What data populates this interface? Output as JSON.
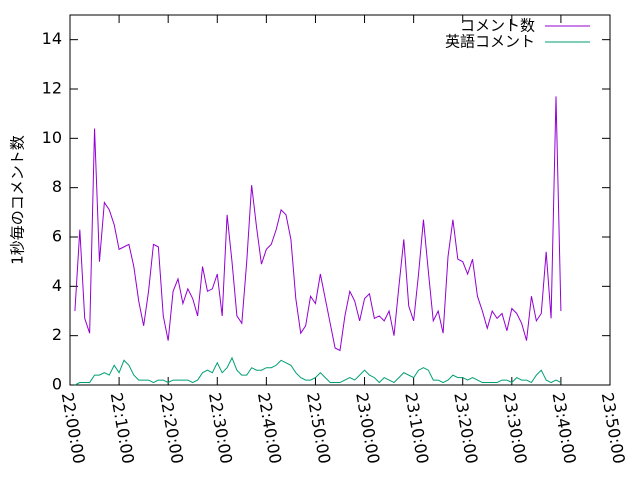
{
  "chart_data": {
    "type": "line",
    "ylabel": "1秒毎のコメント数",
    "x": [
      "22:01:00",
      "22:02:00",
      "22:03:00",
      "22:04:00",
      "22:05:00",
      "22:06:00",
      "22:07:00",
      "22:08:00",
      "22:09:00",
      "22:10:00",
      "22:11:00",
      "22:12:00",
      "22:13:00",
      "22:14:00",
      "22:15:00",
      "22:16:00",
      "22:17:00",
      "22:18:00",
      "22:19:00",
      "22:20:00",
      "22:21:00",
      "22:22:00",
      "22:23:00",
      "22:24:00",
      "22:25:00",
      "22:26:00",
      "22:27:00",
      "22:28:00",
      "22:29:00",
      "22:30:00",
      "22:31:00",
      "22:32:00",
      "22:33:00",
      "22:34:00",
      "22:35:00",
      "22:36:00",
      "22:37:00",
      "22:38:00",
      "22:39:00",
      "22:40:00",
      "22:41:00",
      "22:42:00",
      "22:43:00",
      "22:44:00",
      "22:45:00",
      "22:46:00",
      "22:47:00",
      "22:48:00",
      "22:49:00",
      "22:50:00",
      "22:51:00",
      "22:52:00",
      "22:53:00",
      "22:54:00",
      "22:55:00",
      "22:56:00",
      "22:57:00",
      "22:58:00",
      "22:59:00",
      "23:00:00",
      "23:01:00",
      "23:02:00",
      "23:03:00",
      "23:04:00",
      "23:05:00",
      "23:06:00",
      "23:07:00",
      "23:08:00",
      "23:09:00",
      "23:10:00",
      "23:11:00",
      "23:12:00",
      "23:13:00",
      "23:14:00",
      "23:15:00",
      "23:16:00",
      "23:17:00",
      "23:18:00",
      "23:19:00",
      "23:20:00",
      "23:21:00",
      "23:22:00",
      "23:23:00",
      "23:24:00",
      "23:25:00",
      "23:26:00",
      "23:27:00",
      "23:28:00",
      "23:29:00",
      "23:30:00",
      "23:31:00",
      "23:32:00",
      "23:33:00",
      "23:34:00",
      "23:35:00",
      "23:36:00",
      "23:37:00",
      "23:38:00",
      "23:39:00",
      "23:40:00"
    ],
    "series": [
      {
        "name": "コメント数",
        "color": "#9400d3",
        "values": [
          3.0,
          6.3,
          2.7,
          2.1,
          10.4,
          5.0,
          7.4,
          7.1,
          6.5,
          5.5,
          5.6,
          5.7,
          4.8,
          3.4,
          2.4,
          3.8,
          5.7,
          5.6,
          2.8,
          1.8,
          3.8,
          4.3,
          3.3,
          3.9,
          3.5,
          2.8,
          4.8,
          3.8,
          3.9,
          4.5,
          2.8,
          6.9,
          5.0,
          2.8,
          2.5,
          5.0,
          8.1,
          6.4,
          4.9,
          5.5,
          5.7,
          6.3,
          7.1,
          6.9,
          5.9,
          3.5,
          2.1,
          2.4,
          3.6,
          3.3,
          4.5,
          3.5,
          2.5,
          1.5,
          1.4,
          2.8,
          3.8,
          3.4,
          2.6,
          3.5,
          3.7,
          2.7,
          2.8,
          2.6,
          3.0,
          2.0,
          4.0,
          5.9,
          3.2,
          2.6,
          4.5,
          6.7,
          4.6,
          2.6,
          3.0,
          2.1,
          5.2,
          6.7,
          5.1,
          5.0,
          4.5,
          5.1,
          3.6,
          3.0,
          2.3,
          3.0,
          2.7,
          2.9,
          2.2,
          3.1,
          2.9,
          2.5,
          1.8,
          3.6,
          2.6,
          2.9,
          5.4,
          2.7,
          11.7,
          3.0
        ]
      },
      {
        "name": "英語コメント",
        "color": "#009e73",
        "values": [
          0.0,
          0.1,
          0.1,
          0.1,
          0.4,
          0.4,
          0.5,
          0.4,
          0.8,
          0.5,
          1.0,
          0.8,
          0.4,
          0.2,
          0.2,
          0.2,
          0.1,
          0.2,
          0.2,
          0.1,
          0.2,
          0.2,
          0.2,
          0.2,
          0.1,
          0.2,
          0.5,
          0.6,
          0.5,
          0.9,
          0.5,
          0.7,
          1.1,
          0.6,
          0.4,
          0.4,
          0.7,
          0.6,
          0.6,
          0.7,
          0.7,
          0.8,
          1.0,
          0.9,
          0.8,
          0.5,
          0.3,
          0.2,
          0.2,
          0.3,
          0.5,
          0.3,
          0.1,
          0.1,
          0.1,
          0.2,
          0.3,
          0.2,
          0.4,
          0.6,
          0.4,
          0.3,
          0.1,
          0.3,
          0.2,
          0.1,
          0.3,
          0.5,
          0.4,
          0.3,
          0.6,
          0.7,
          0.6,
          0.2,
          0.2,
          0.1,
          0.2,
          0.4,
          0.3,
          0.3,
          0.2,
          0.3,
          0.2,
          0.1,
          0.1,
          0.1,
          0.1,
          0.2,
          0.2,
          0.1,
          0.3,
          0.2,
          0.2,
          0.1,
          0.4,
          0.6,
          0.2,
          0.1,
          0.2,
          0.1
        ]
      }
    ],
    "xlim": [
      "22:00:00",
      "23:50:00"
    ],
    "xticks": [
      "22:00:00",
      "22:10:00",
      "22:20:00",
      "22:30:00",
      "22:40:00",
      "22:50:00",
      "23:00:00",
      "23:10:00",
      "23:20:00",
      "23:30:00",
      "23:40:00",
      "23:50:00"
    ],
    "ylim": [
      0,
      15
    ],
    "yticks": [
      0,
      2,
      4,
      6,
      8,
      10,
      12,
      14
    ],
    "legend": "top-right"
  }
}
